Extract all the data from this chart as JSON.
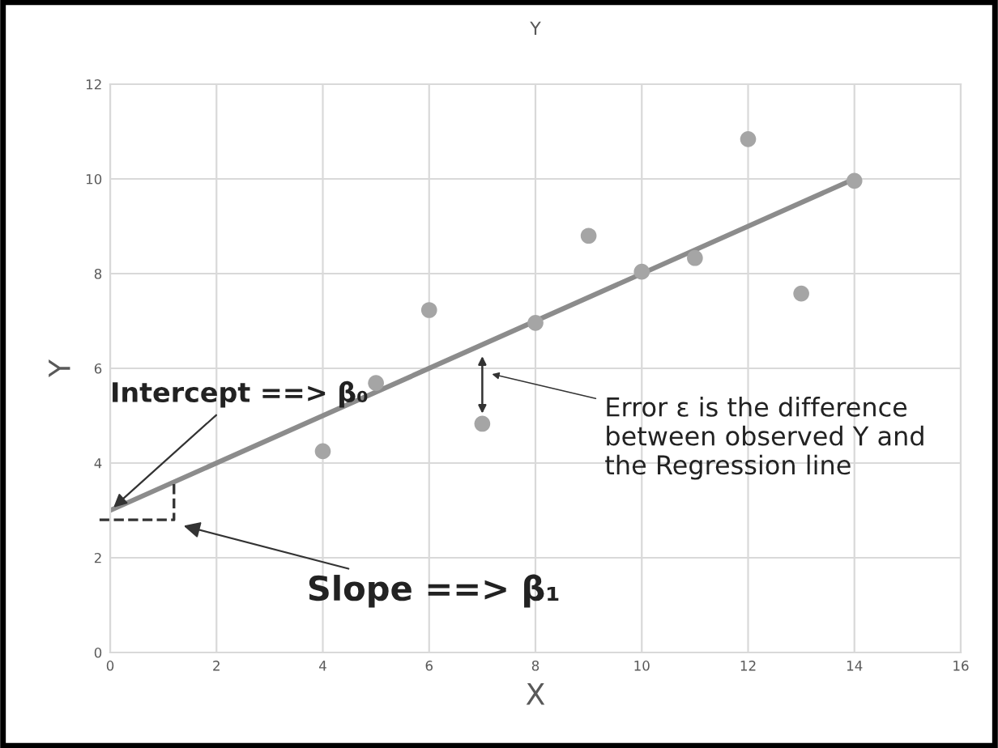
{
  "chart_data": {
    "type": "scatter",
    "title": "Y",
    "xlabel": "X",
    "ylabel": "Y",
    "series": [
      {
        "color": "#a5a5a5",
        "marker": "circle",
        "x": [
          4,
          5,
          6,
          7,
          8,
          9,
          10,
          11,
          12,
          13,
          14
        ],
        "values": [
          4.25,
          5.69,
          7.23,
          4.83,
          6.96,
          8.8,
          8.04,
          8.33,
          10.84,
          7.58,
          9.96
        ]
      },
      {
        "type": "line",
        "color": "#8c8c8c",
        "x": [
          0,
          14
        ],
        "values": [
          3,
          10
        ]
      }
    ],
    "annotations": [
      {
        "text": "Intercept ==> β₀",
        "x": 0,
        "y": 3
      },
      "Slope ==> β₁",
      "Error ε is the difference\nbetween observed Y and\nthe Regression line"
    ],
    "xlim": [
      0,
      16
    ],
    "ylim": [
      0,
      12
    ],
    "xticks": [
      0,
      2,
      4,
      6,
      8,
      10,
      12,
      14,
      16
    ],
    "yticks": [
      0,
      2,
      4,
      6,
      8,
      10,
      12
    ],
    "grid": true
  }
}
